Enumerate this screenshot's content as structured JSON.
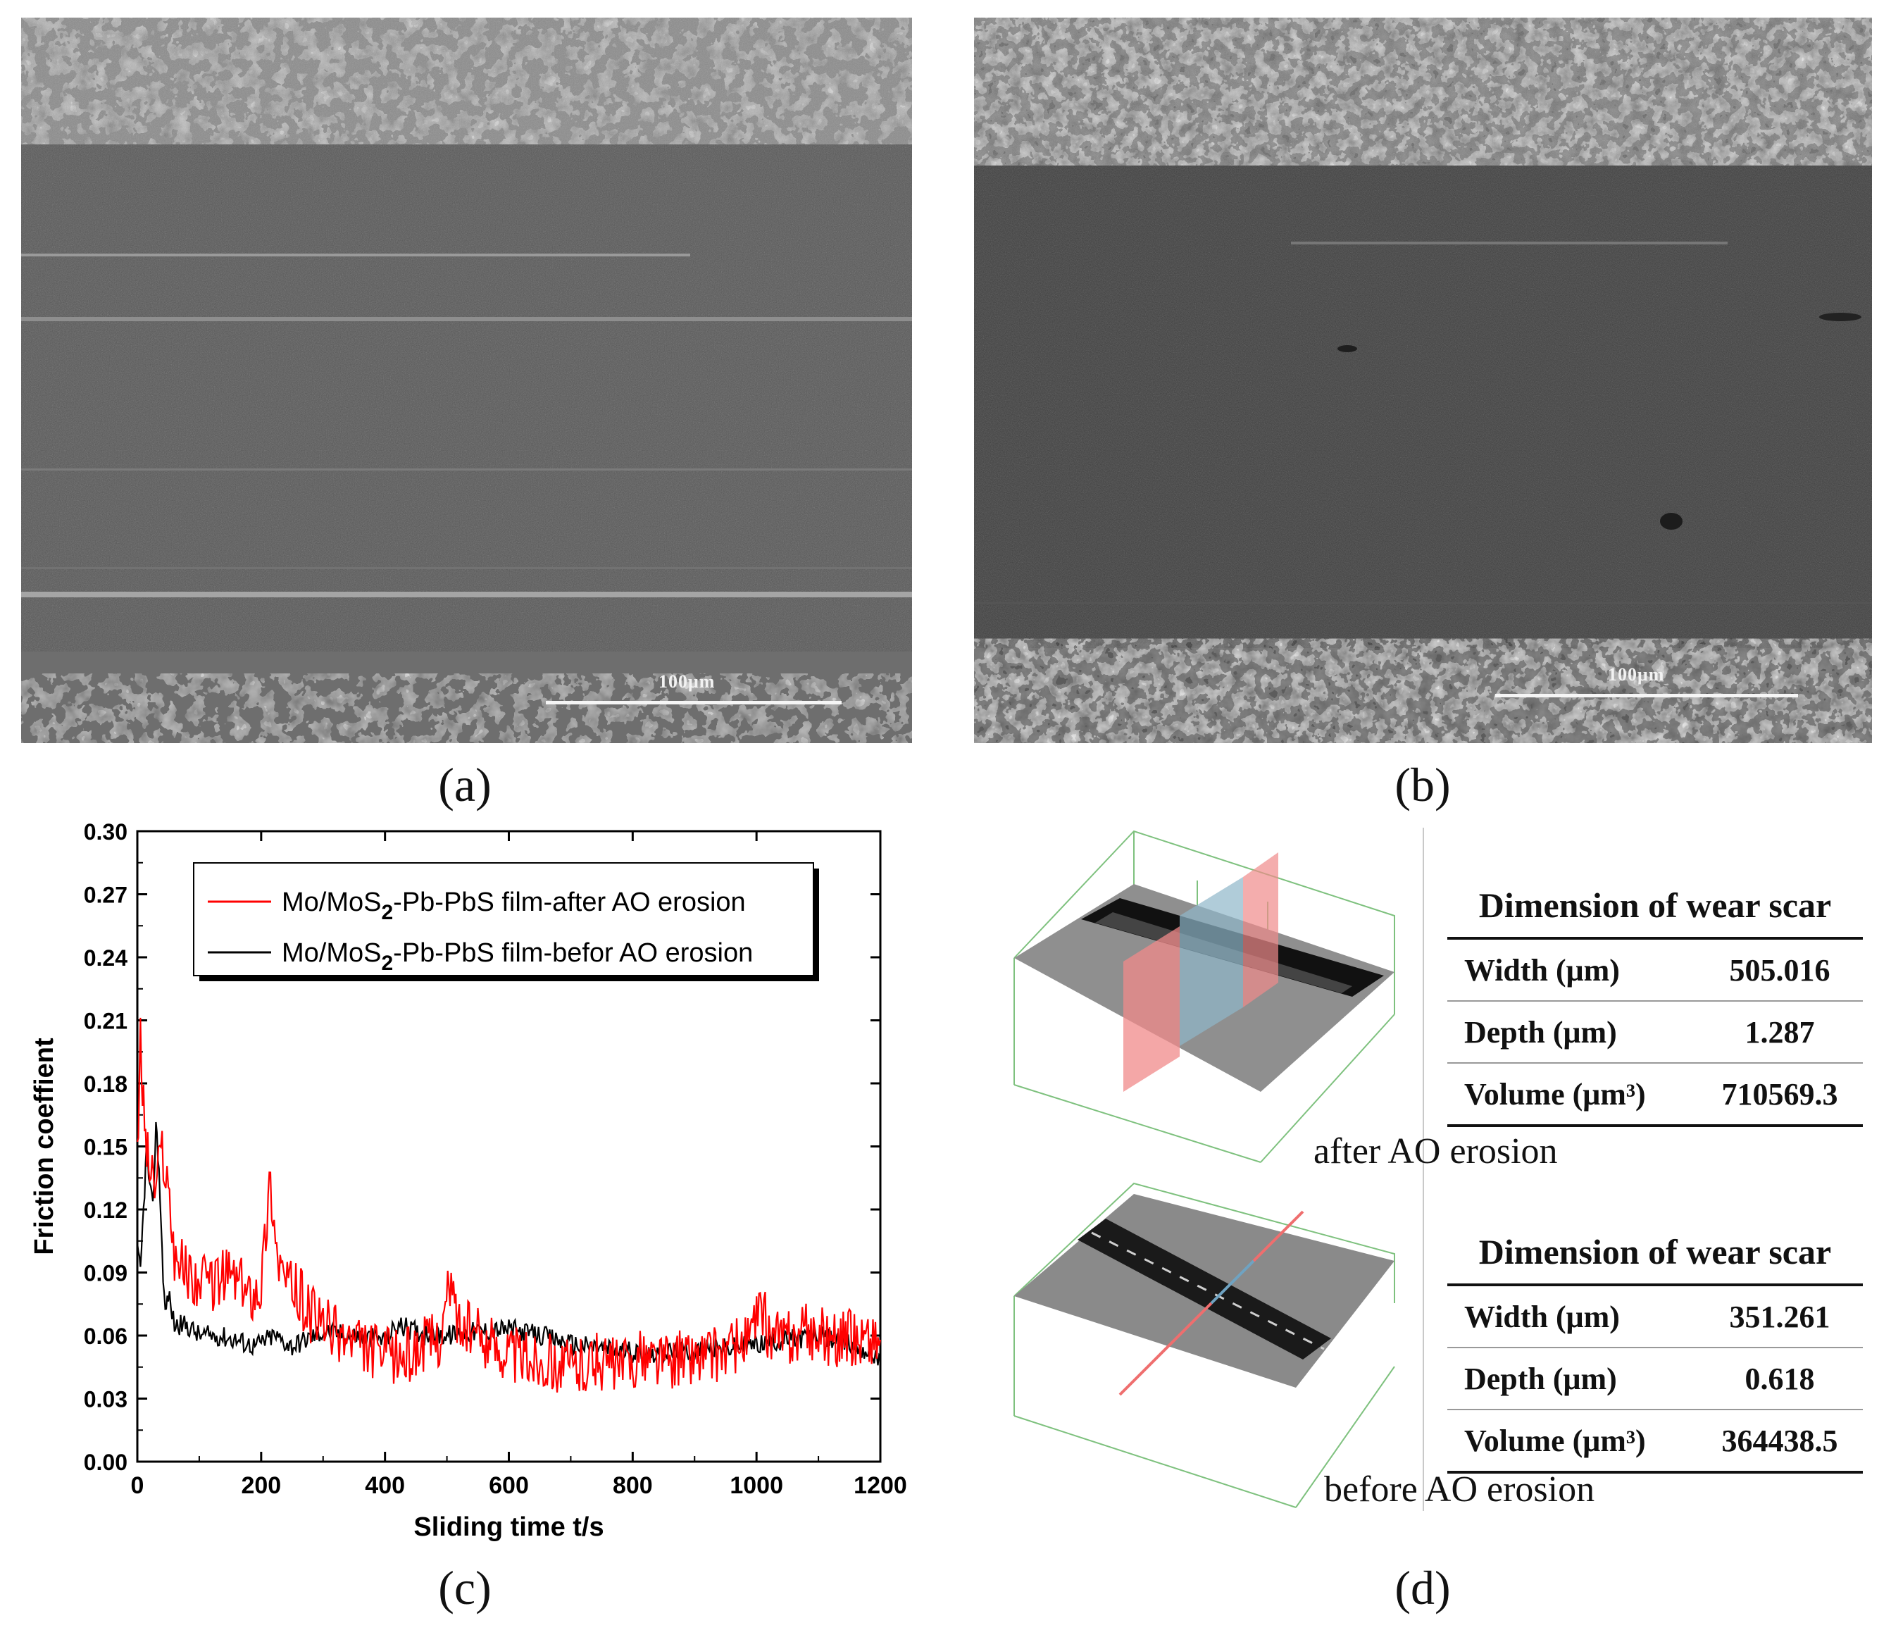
{
  "panels": {
    "a": {
      "label": "(a)",
      "scale_text": "100μm"
    },
    "b": {
      "label": "(b)",
      "scale_text": "100μm"
    },
    "c": {
      "label": "(c)"
    },
    "d": {
      "label": "(d)"
    }
  },
  "chart_data": {
    "type": "line",
    "xlabel": "Sliding time t/s",
    "ylabel": "Friction coeffient",
    "xlim": [
      0,
      1200
    ],
    "ylim": [
      0.0,
      0.3
    ],
    "xticks": [
      "0",
      "200",
      "400",
      "600",
      "800",
      "1000",
      "1200"
    ],
    "yticks": [
      "0.00",
      "0.03",
      "0.06",
      "0.09",
      "0.12",
      "0.15",
      "0.18",
      "0.21",
      "0.24",
      "0.27",
      "0.30"
    ],
    "legend_position": "top-left",
    "series": [
      {
        "name": "Mo/MoS2-Pb-PbS film-after AO erosion",
        "legend_main": "Mo/MoS",
        "legend_sub": "2",
        "legend_rest": "-Pb-PbS film-after AO erosion",
        "color": "#ff0000",
        "x": [
          0,
          5,
          10,
          15,
          20,
          30,
          40,
          50,
          60,
          80,
          100,
          120,
          150,
          180,
          200,
          215,
          225,
          240,
          260,
          280,
          300,
          330,
          360,
          400,
          430,
          460,
          490,
          505,
          520,
          550,
          580,
          620,
          660,
          700,
          740,
          780,
          820,
          860,
          900,
          940,
          980,
          1000,
          1010,
          1020,
          1050,
          1080,
          1110,
          1140,
          1170,
          1200
        ],
        "y": [
          0.14,
          0.2,
          0.17,
          0.15,
          0.14,
          0.13,
          0.15,
          0.13,
          0.1,
          0.09,
          0.085,
          0.085,
          0.09,
          0.08,
          0.085,
          0.135,
          0.1,
          0.085,
          0.08,
          0.07,
          0.065,
          0.06,
          0.055,
          0.05,
          0.05,
          0.055,
          0.06,
          0.085,
          0.065,
          0.06,
          0.055,
          0.05,
          0.048,
          0.045,
          0.048,
          0.045,
          0.05,
          0.048,
          0.05,
          0.052,
          0.056,
          0.065,
          0.072,
          0.06,
          0.058,
          0.062,
          0.06,
          0.058,
          0.06,
          0.058
        ]
      },
      {
        "name": "Mo/MoS2-Pb-PbS film-befor AO erosion",
        "legend_main": "Mo/MoS",
        "legend_sub": "2",
        "legend_rest": "-Pb-PbS film-befor AO erosion",
        "color": "#000000",
        "x": [
          0,
          5,
          10,
          15,
          20,
          25,
          30,
          35,
          40,
          45,
          50,
          60,
          80,
          100,
          130,
          160,
          190,
          220,
          250,
          300,
          350,
          400,
          420,
          450,
          500,
          550,
          600,
          650,
          700,
          750,
          800,
          850,
          900,
          950,
          1000,
          1050,
          1100,
          1150,
          1200
        ],
        "y": [
          0.1,
          0.09,
          0.12,
          0.15,
          0.13,
          0.12,
          0.16,
          0.14,
          0.1,
          0.07,
          0.08,
          0.065,
          0.065,
          0.06,
          0.06,
          0.058,
          0.055,
          0.06,
          0.055,
          0.062,
          0.06,
          0.058,
          0.065,
          0.062,
          0.06,
          0.062,
          0.063,
          0.06,
          0.056,
          0.054,
          0.052,
          0.052,
          0.053,
          0.054,
          0.056,
          0.058,
          0.06,
          0.056,
          0.05
        ]
      }
    ]
  },
  "wear_tables": [
    {
      "title": "Dimension of wear scar",
      "caption": "after AO erosion",
      "rows": [
        {
          "key": "Width (μm)",
          "value": "505.016"
        },
        {
          "key": "Depth (μm)",
          "value": "1.287"
        },
        {
          "key": "Volume (μm³)",
          "value": "710569.3"
        }
      ]
    },
    {
      "title": "Dimension of wear scar",
      "caption": "before AO erosion",
      "rows": [
        {
          "key": "Width (μm)",
          "value": "351.261"
        },
        {
          "key": "Depth (μm)",
          "value": "0.618"
        },
        {
          "key": "Volume (μm³)",
          "value": "364438.5"
        }
      ]
    }
  ],
  "colors": {
    "after": "#ff0000",
    "before": "#000000"
  }
}
